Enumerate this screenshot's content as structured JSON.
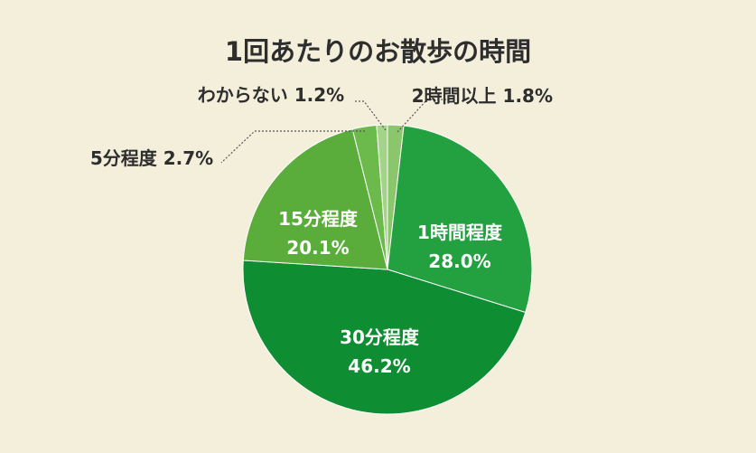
{
  "chart_data": {
    "type": "pie",
    "title": "1回あたりのお散歩の時間",
    "slices": [
      {
        "label": "2時間以上",
        "value": 1.8,
        "value_label": "1.8%",
        "color": "#8cc66c",
        "inside": false
      },
      {
        "label": "1時間程度",
        "value": 28.0,
        "value_label": "28.0%",
        "color": "#23a03f",
        "inside": true
      },
      {
        "label": "30分程度",
        "value": 46.2,
        "value_label": "46.2%",
        "color": "#0f8d32",
        "inside": true
      },
      {
        "label": "15分程度",
        "value": 20.1,
        "value_label": "20.1%",
        "color": "#5aad3b",
        "inside": true
      },
      {
        "label": "5分程度",
        "value": 2.7,
        "value_label": "2.7%",
        "color": "#6cba4b",
        "inside": false
      },
      {
        "label": "わからない",
        "value": 1.2,
        "value_label": "1.2%",
        "color": "#a3d489",
        "inside": false
      }
    ],
    "text_color": "#2e2e2e",
    "leader_color": "#555555"
  }
}
